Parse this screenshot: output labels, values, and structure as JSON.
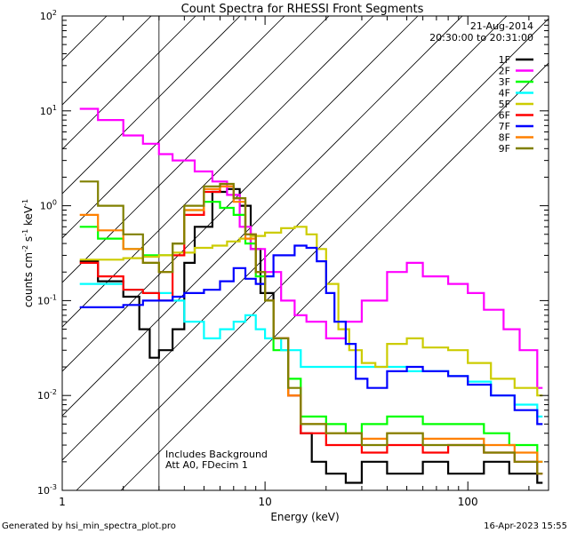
{
  "chart_data": {
    "type": "line",
    "title": "Count Spectra for RHESSI Front Segments",
    "xlabel": "Energy (keV)",
    "ylabel_main": "counts cm",
    "ylabel_sup1": "-2",
    "ylabel_mid": " s",
    "ylabel_sup2": "-1",
    "ylabel_end": " keV",
    "ylabel_sup3": "-1",
    "xscale": "log",
    "yscale": "log",
    "xlim": [
      1,
      250
    ],
    "ylim": [
      0.001,
      100
    ],
    "x_ticks": [
      {
        "value": 1,
        "label": "1"
      },
      {
        "value": 10,
        "label": "10"
      },
      {
        "value": 100,
        "label": "100"
      }
    ],
    "y_ticks": [
      {
        "value": 0.001,
        "base": "10",
        "exp": "-3"
      },
      {
        "value": 0.01,
        "base": "10",
        "exp": "-2"
      },
      {
        "value": 0.1,
        "base": "10",
        "exp": "-1"
      },
      {
        "value": 1,
        "base": "10",
        "exp": "0"
      },
      {
        "value": 10,
        "base": "10",
        "exp": "1"
      },
      {
        "value": 100,
        "base": "10",
        "exp": "2"
      }
    ],
    "hatched_region_max_energy": 3,
    "date": "21-Aug-2014",
    "time_range": "20:30:00 to 20:31:00",
    "annotation_lines": [
      "Includes Background",
      "Att A0, FDecim 1"
    ],
    "footer_left": "Generated by hsi_min_spectra_plot.pro",
    "footer_right": "16-Apr-2023 15:55",
    "series": [
      {
        "name": "1F",
        "color": "#000000",
        "points": [
          [
            1.22,
            0.26
          ],
          [
            1.5,
            0.16
          ],
          [
            2.0,
            0.11
          ],
          [
            2.4,
            0.05
          ],
          [
            2.7,
            0.025
          ],
          [
            3.0,
            0.03
          ],
          [
            3.5,
            0.05
          ],
          [
            4.0,
            0.25
          ],
          [
            4.5,
            0.6
          ],
          [
            5.5,
            1.4
          ],
          [
            6.5,
            1.5
          ],
          [
            7.5,
            1.0
          ],
          [
            8.5,
            0.35
          ],
          [
            9.5,
            0.12
          ],
          [
            11,
            0.04
          ],
          [
            13,
            0.01
          ],
          [
            15,
            0.004
          ],
          [
            17,
            0.002
          ],
          [
            20,
            0.0015
          ],
          [
            25,
            0.0012
          ],
          [
            30,
            0.002
          ],
          [
            40,
            0.0015
          ],
          [
            60,
            0.002
          ],
          [
            80,
            0.0015
          ],
          [
            120,
            0.002
          ],
          [
            160,
            0.0015
          ],
          [
            220,
            0.0012
          ]
        ]
      },
      {
        "name": "2F",
        "color": "#ff00ff",
        "points": [
          [
            1.22,
            10.5
          ],
          [
            1.5,
            8.0
          ],
          [
            2.0,
            5.5
          ],
          [
            2.5,
            4.5
          ],
          [
            3.0,
            3.5
          ],
          [
            3.5,
            3.0
          ],
          [
            4.5,
            2.3
          ],
          [
            5.5,
            1.8
          ],
          [
            6.5,
            1.3
          ],
          [
            7.5,
            0.6
          ],
          [
            8.5,
            0.35
          ],
          [
            10,
            0.2
          ],
          [
            12,
            0.1
          ],
          [
            14,
            0.07
          ],
          [
            16,
            0.06
          ],
          [
            20,
            0.04
          ],
          [
            25,
            0.06
          ],
          [
            30,
            0.1
          ],
          [
            40,
            0.2
          ],
          [
            50,
            0.25
          ],
          [
            60,
            0.18
          ],
          [
            80,
            0.15
          ],
          [
            100,
            0.12
          ],
          [
            120,
            0.08
          ],
          [
            150,
            0.05
          ],
          [
            180,
            0.03
          ],
          [
            220,
            0.012
          ]
        ]
      },
      {
        "name": "3F",
        "color": "#00ff00",
        "points": [
          [
            1.22,
            0.6
          ],
          [
            1.5,
            0.45
          ],
          [
            2.0,
            0.35
          ],
          [
            2.5,
            0.3
          ],
          [
            3.0,
            0.3
          ],
          [
            3.5,
            0.4
          ],
          [
            4.0,
            0.9
          ],
          [
            5.0,
            1.1
          ],
          [
            6.0,
            0.95
          ],
          [
            7.0,
            0.8
          ],
          [
            8.0,
            0.4
          ],
          [
            9.0,
            0.18
          ],
          [
            10,
            0.1
          ],
          [
            11,
            0.03
          ],
          [
            13,
            0.015
          ],
          [
            15,
            0.006
          ],
          [
            20,
            0.005
          ],
          [
            25,
            0.004
          ],
          [
            30,
            0.005
          ],
          [
            40,
            0.006
          ],
          [
            60,
            0.005
          ],
          [
            80,
            0.005
          ],
          [
            120,
            0.004
          ],
          [
            160,
            0.003
          ],
          [
            220,
            0.002
          ]
        ]
      },
      {
        "name": "4F",
        "color": "#00ffff",
        "points": [
          [
            1.22,
            0.15
          ],
          [
            1.5,
            0.15
          ],
          [
            2.0,
            0.13
          ],
          [
            2.5,
            0.12
          ],
          [
            3.0,
            0.12
          ],
          [
            3.5,
            0.1
          ],
          [
            4.0,
            0.06
          ],
          [
            5.0,
            0.04
          ],
          [
            6.0,
            0.05
          ],
          [
            7.0,
            0.06
          ],
          [
            8.0,
            0.07
          ],
          [
            9.0,
            0.05
          ],
          [
            10,
            0.04
          ],
          [
            12,
            0.03
          ],
          [
            15,
            0.02
          ],
          [
            20,
            0.02
          ],
          [
            25,
            0.02
          ],
          [
            30,
            0.02
          ],
          [
            40,
            0.02
          ],
          [
            50,
            0.018
          ],
          [
            60,
            0.018
          ],
          [
            80,
            0.016
          ],
          [
            100,
            0.014
          ],
          [
            130,
            0.01
          ],
          [
            170,
            0.008
          ],
          [
            220,
            0.006
          ]
        ]
      },
      {
        "name": "5F",
        "color": "#cccc00",
        "points": [
          [
            1.22,
            0.27
          ],
          [
            1.5,
            0.27
          ],
          [
            2.0,
            0.28
          ],
          [
            2.5,
            0.29
          ],
          [
            3.0,
            0.3
          ],
          [
            3.5,
            0.32
          ],
          [
            4.5,
            0.36
          ],
          [
            5.5,
            0.38
          ],
          [
            6.5,
            0.42
          ],
          [
            7.5,
            0.45
          ],
          [
            8.5,
            0.48
          ],
          [
            10,
            0.52
          ],
          [
            12,
            0.58
          ],
          [
            14,
            0.6
          ],
          [
            16,
            0.5
          ],
          [
            18,
            0.35
          ],
          [
            20,
            0.15
          ],
          [
            23,
            0.05
          ],
          [
            26,
            0.03
          ],
          [
            30,
            0.022
          ],
          [
            35,
            0.02
          ],
          [
            40,
            0.035
          ],
          [
            50,
            0.04
          ],
          [
            60,
            0.032
          ],
          [
            80,
            0.03
          ],
          [
            100,
            0.022
          ],
          [
            130,
            0.015
          ],
          [
            170,
            0.012
          ],
          [
            220,
            0.01
          ]
        ]
      },
      {
        "name": "6F",
        "color": "#ff0000",
        "points": [
          [
            1.22,
            0.25
          ],
          [
            1.5,
            0.18
          ],
          [
            2.0,
            0.13
          ],
          [
            2.5,
            0.12
          ],
          [
            3.0,
            0.1
          ],
          [
            3.5,
            0.3
          ],
          [
            4.0,
            0.8
          ],
          [
            5.0,
            1.4
          ],
          [
            6.0,
            1.6
          ],
          [
            7.0,
            1.2
          ],
          [
            8.0,
            0.5
          ],
          [
            9.0,
            0.2
          ],
          [
            10,
            0.1
          ],
          [
            11,
            0.04
          ],
          [
            13,
            0.01
          ],
          [
            15,
            0.004
          ],
          [
            20,
            0.003
          ],
          [
            30,
            0.0025
          ],
          [
            40,
            0.003
          ],
          [
            60,
            0.0025
          ],
          [
            80,
            0.003
          ],
          [
            120,
            0.0025
          ],
          [
            170,
            0.002
          ],
          [
            220,
            0.0015
          ]
        ]
      },
      {
        "name": "7F",
        "color": "#0000ff",
        "points": [
          [
            1.22,
            0.085
          ],
          [
            1.5,
            0.085
          ],
          [
            2.0,
            0.09
          ],
          [
            2.5,
            0.1
          ],
          [
            3.0,
            0.1
          ],
          [
            3.5,
            0.11
          ],
          [
            4.0,
            0.12
          ],
          [
            5.0,
            0.13
          ],
          [
            6.0,
            0.16
          ],
          [
            7.0,
            0.22
          ],
          [
            8.0,
            0.17
          ],
          [
            9.0,
            0.15
          ],
          [
            10,
            0.18
          ],
          [
            11,
            0.3
          ],
          [
            12,
            0.3
          ],
          [
            14,
            0.38
          ],
          [
            16,
            0.36
          ],
          [
            18,
            0.26
          ],
          [
            20,
            0.12
          ],
          [
            22,
            0.06
          ],
          [
            25,
            0.035
          ],
          [
            28,
            0.015
          ],
          [
            32,
            0.012
          ],
          [
            40,
            0.018
          ],
          [
            50,
            0.02
          ],
          [
            60,
            0.018
          ],
          [
            80,
            0.016
          ],
          [
            100,
            0.013
          ],
          [
            130,
            0.01
          ],
          [
            170,
            0.007
          ],
          [
            220,
            0.005
          ]
        ]
      },
      {
        "name": "8F",
        "color": "#ff8000",
        "points": [
          [
            1.22,
            0.8
          ],
          [
            1.5,
            0.55
          ],
          [
            2.0,
            0.35
          ],
          [
            2.5,
            0.25
          ],
          [
            3.0,
            0.2
          ],
          [
            3.5,
            0.4
          ],
          [
            4.0,
            0.9
          ],
          [
            5.0,
            1.5
          ],
          [
            6.0,
            1.6
          ],
          [
            7.0,
            1.1
          ],
          [
            8.0,
            0.45
          ],
          [
            9.0,
            0.2
          ],
          [
            10,
            0.1
          ],
          [
            11,
            0.04
          ],
          [
            13,
            0.01
          ],
          [
            15,
            0.005
          ],
          [
            20,
            0.004
          ],
          [
            30,
            0.0035
          ],
          [
            40,
            0.004
          ],
          [
            60,
            0.0035
          ],
          [
            80,
            0.0035
          ],
          [
            120,
            0.003
          ],
          [
            170,
            0.0025
          ],
          [
            220,
            0.002
          ]
        ]
      },
      {
        "name": "9F",
        "color": "#808000",
        "points": [
          [
            1.22,
            1.8
          ],
          [
            1.5,
            1.0
          ],
          [
            2.0,
            0.5
          ],
          [
            2.5,
            0.25
          ],
          [
            3.0,
            0.2
          ],
          [
            3.5,
            0.4
          ],
          [
            4.0,
            1.0
          ],
          [
            5.0,
            1.6
          ],
          [
            6.0,
            1.7
          ],
          [
            7.0,
            1.2
          ],
          [
            8.0,
            0.5
          ],
          [
            9.0,
            0.2
          ],
          [
            10,
            0.1
          ],
          [
            11,
            0.04
          ],
          [
            13,
            0.012
          ],
          [
            15,
            0.005
          ],
          [
            20,
            0.004
          ],
          [
            30,
            0.003
          ],
          [
            40,
            0.004
          ],
          [
            60,
            0.003
          ],
          [
            80,
            0.003
          ],
          [
            120,
            0.0025
          ],
          [
            170,
            0.002
          ],
          [
            220,
            0.0015
          ]
        ]
      }
    ]
  }
}
